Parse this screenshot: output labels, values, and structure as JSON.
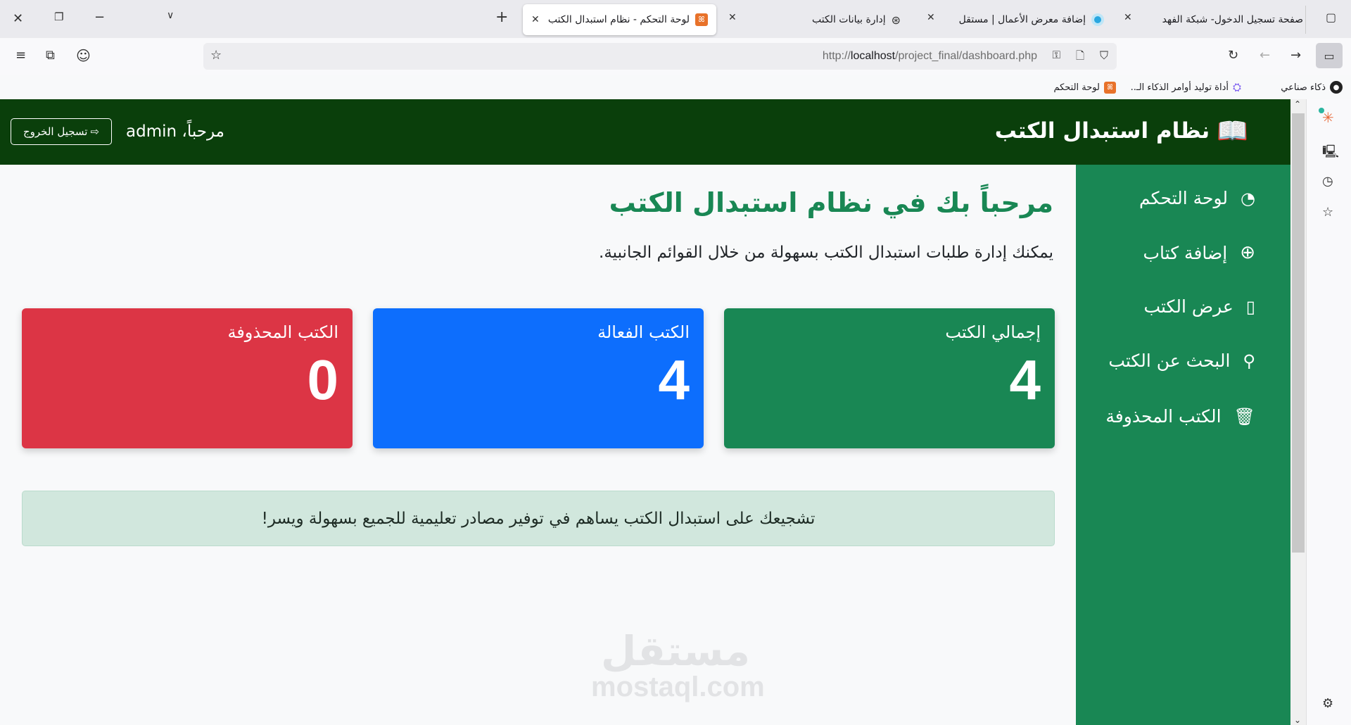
{
  "browser": {
    "tabs": [
      {
        "title": "لوحة التحكم - نظام استبدال الكتب",
        "active": true,
        "icon": "xampp-icon"
      },
      {
        "title": "إدارة بيانات الكتب",
        "icon": "openai-icon"
      },
      {
        "title": "إضافة معرض الأعمال | مستقل",
        "icon": "mostaql-icon"
      },
      {
        "title": "صفحة تسجيل الدخول- شبكة الفهد",
        "icon": "none"
      }
    ],
    "url_host": "localhost",
    "url_prefix": "http://",
    "url_path": "/project_final/dashboard.php",
    "bookmarks": [
      {
        "label": "ذكاء صناعي",
        "icon": "robot-icon"
      },
      {
        "label": "أداة توليد أوامر الذكاء الـ..",
        "icon": "ai-icon"
      },
      {
        "label": "لوحة التحكم",
        "icon": "xampp-icon"
      }
    ]
  },
  "header": {
    "brand": "نظام استبدال الكتب",
    "welcome": "مرحباً، admin",
    "logout": "تسجيل الخروج"
  },
  "sidebar": {
    "items": [
      {
        "label": "لوحة التحكم",
        "icon": "speedometer-icon"
      },
      {
        "label": "إضافة كتاب",
        "icon": "plus-circle-icon"
      },
      {
        "label": "عرض الكتب",
        "icon": "journal-bookmark-icon"
      },
      {
        "label": "البحث عن الكتب",
        "icon": "search-icon"
      },
      {
        "label": "الكتب المحذوفة",
        "icon": "trash-icon"
      }
    ]
  },
  "main": {
    "title": "مرحباً بك في نظام استبدال الكتب",
    "subtitle": "يمكنك إدارة طلبات استبدال الكتب بسهولة من خلال القوائم الجانبية.",
    "cards": [
      {
        "label": "إجمالي الكتب",
        "value": "4",
        "color": "#198754"
      },
      {
        "label": "الكتب الفعالة",
        "value": "4",
        "color": "#0d6efd"
      },
      {
        "label": "الكتب المحذوفة",
        "value": "0",
        "color": "#dc3545"
      }
    ],
    "alert": "تشجيعك على استبدال الكتب يساهم في توفير مصادر تعليمية للجميع بسهولة ويسر!"
  },
  "watermark": {
    "ar": "مستقل",
    "en": "mostaql.com"
  }
}
